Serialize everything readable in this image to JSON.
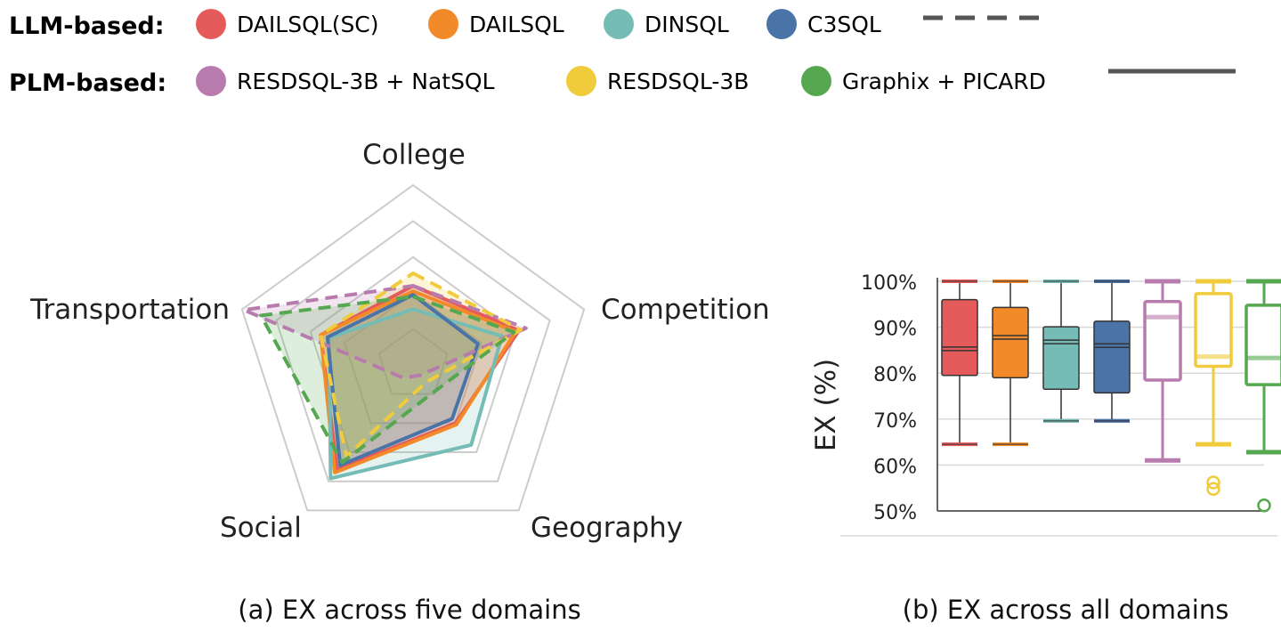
{
  "legend": {
    "llm_group_label": "LLM-based:",
    "plm_group_label": "PLM-based:",
    "llm": [
      {
        "name": "DAILSQL(SC)",
        "color": "#e55a5a"
      },
      {
        "name": "DAILSQL",
        "color": "#f28a2a"
      },
      {
        "name": "DINSQL",
        "color": "#76bcb6"
      },
      {
        "name": "C3SQL",
        "color": "#4a73a8"
      }
    ],
    "plm": [
      {
        "name": "RESDSQL-3B + NatSQL",
        "color": "#b87bad"
      },
      {
        "name": "RESDSQL-3B",
        "color": "#f0cb3c"
      },
      {
        "name": "Graphix + PICARD",
        "color": "#55a84f"
      }
    ],
    "llm_line_style": "dashed",
    "plm_line_style": "solid"
  },
  "captions": {
    "a": "(a) EX across five domains",
    "b": "(b) EX across all domains"
  },
  "chart_data": [
    {
      "type": "radar",
      "axes": [
        "College",
        "Competition",
        "Geography",
        "Social",
        "Transportation"
      ],
      "range": [
        0,
        100
      ],
      "grid_levels": 5,
      "series": [
        {
          "name": "DAILSQL(SC)",
          "values": [
            44,
            62,
            40,
            72,
            54
          ],
          "line": "solid",
          "color": "#e55a5a"
        },
        {
          "name": "DAILSQL",
          "values": [
            41,
            60,
            41,
            74,
            54
          ],
          "line": "solid",
          "color": "#f28a2a"
        },
        {
          "name": "DINSQL",
          "values": [
            31,
            52,
            55,
            78,
            49
          ],
          "line": "solid",
          "color": "#76bcb6"
        },
        {
          "name": "C3SQL",
          "values": [
            39,
            38,
            37,
            69,
            50
          ],
          "line": "solid",
          "color": "#4a73a8"
        },
        {
          "name": "RESDSQL-3B + NatSQL",
          "values": [
            44,
            66,
            7,
            9,
            99
          ],
          "line": "dashed",
          "color": "#b87bad"
        },
        {
          "name": "RESDSQL-3B",
          "values": [
            51,
            63,
            12,
            63,
            54
          ],
          "line": "dashed",
          "color": "#f0cb3c"
        },
        {
          "name": "Graphix + PICARD",
          "values": [
            38,
            59,
            19,
            67,
            89
          ],
          "line": "dashed",
          "color": "#55a84f"
        }
      ]
    },
    {
      "type": "box",
      "ylabel": "EX (%)",
      "ylim": [
        50,
        100
      ],
      "yticks": [
        "50%",
        "60%",
        "70%",
        "80%",
        "90%",
        "100%"
      ],
      "series": [
        {
          "name": "DAILSQL(SC)",
          "min": 64.5,
          "q1": 79.5,
          "median": 85.3,
          "q3": 96,
          "max": 100,
          "outliers": [],
          "color": "#e55a5a",
          "filled": true
        },
        {
          "name": "DAILSQL",
          "min": 64.5,
          "q1": 79,
          "median": 87.8,
          "q3": 94.3,
          "max": 100,
          "outliers": [],
          "color": "#f28a2a",
          "filled": true
        },
        {
          "name": "DINSQL",
          "min": 69.6,
          "q1": 76.5,
          "median": 86.8,
          "q3": 90.1,
          "max": 100,
          "outliers": [],
          "color": "#76bcb6",
          "filled": true
        },
        {
          "name": "C3SQL",
          "min": 69.6,
          "q1": 75.7,
          "median": 86,
          "q3": 91.3,
          "max": 100,
          "outliers": [],
          "color": "#4a73a8",
          "filled": true
        },
        {
          "name": "RESDSQL-3B + NatSQL",
          "min": 61,
          "q1": 78.5,
          "median": 92.2,
          "q3": 95.6,
          "max": 100,
          "outliers": [],
          "color": "#b87bad",
          "filled": false
        },
        {
          "name": "RESDSQL-3B",
          "min": 64.5,
          "q1": 81.5,
          "median": 83.6,
          "q3": 97.3,
          "max": 100,
          "outliers": [
            56.2,
            54.8
          ],
          "color": "#f0cb3c",
          "filled": false
        },
        {
          "name": "Graphix + PICARD",
          "min": 62.8,
          "q1": 77.5,
          "median": 83.3,
          "q3": 94.8,
          "max": 100,
          "outliers": [
            51.2
          ],
          "color": "#55a84f",
          "filled": false
        }
      ]
    }
  ]
}
